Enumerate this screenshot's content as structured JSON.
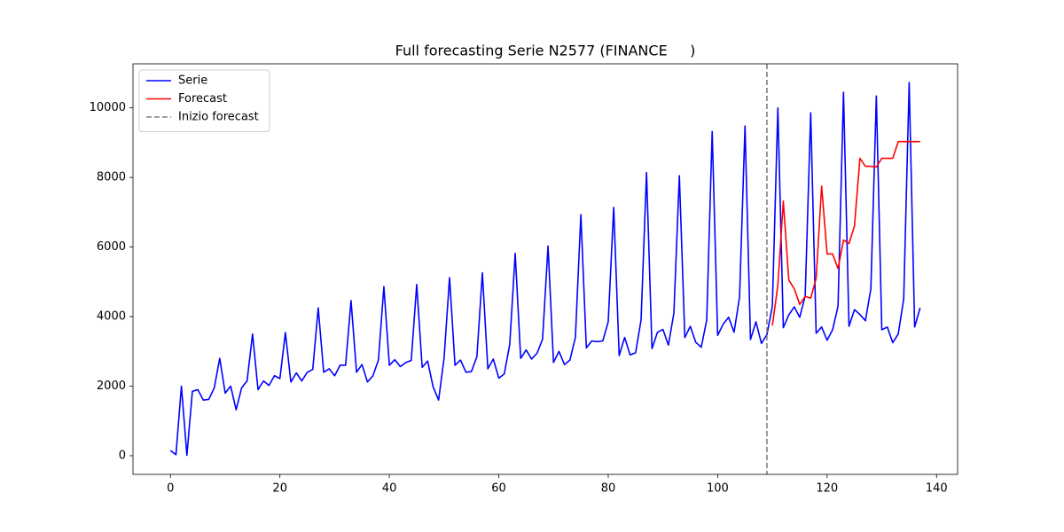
{
  "chart_data": {
    "type": "line",
    "title": "Full forecasting Serie N2577 (FINANCE     )",
    "xlim": [
      -6.85,
      143.85
    ],
    "ylim": [
      -536,
      11266
    ],
    "xticks": [
      0,
      20,
      40,
      60,
      80,
      100,
      120,
      140
    ],
    "yticks": [
      0,
      2000,
      4000,
      6000,
      8000,
      10000
    ],
    "legend": "upper left",
    "series": [
      {
        "name": "Serie",
        "color": "#0000ff",
        "x": [
          0,
          1,
          2,
          3,
          4,
          5,
          6,
          7,
          8,
          9,
          10,
          11,
          12,
          13,
          14,
          15,
          16,
          17,
          18,
          19,
          20,
          21,
          22,
          23,
          24,
          25,
          26,
          27,
          28,
          29,
          30,
          31,
          32,
          33,
          34,
          35,
          36,
          37,
          38,
          39,
          40,
          41,
          42,
          43,
          44,
          45,
          46,
          47,
          48,
          49,
          50,
          51,
          52,
          53,
          54,
          55,
          56,
          57,
          58,
          59,
          60,
          61,
          62,
          63,
          64,
          65,
          66,
          67,
          68,
          69,
          70,
          71,
          72,
          73,
          74,
          75,
          76,
          77,
          78,
          79,
          80,
          81,
          82,
          83,
          84,
          85,
          86,
          87,
          88,
          89,
          90,
          91,
          92,
          93,
          94,
          95,
          96,
          97,
          98,
          99,
          100,
          101,
          102,
          103,
          104,
          105,
          106,
          107,
          108,
          109,
          110,
          111,
          112,
          113,
          114,
          115,
          116,
          117,
          118,
          119,
          120,
          121,
          122,
          123,
          124,
          125,
          126,
          127,
          128,
          129,
          130,
          131,
          132,
          133,
          134,
          135,
          136,
          137
        ],
        "values": [
          150,
          30,
          2000,
          10,
          1850,
          1900,
          1600,
          1620,
          1950,
          2800,
          1800,
          2000,
          1320,
          1950,
          2150,
          3500,
          1900,
          2150,
          2020,
          2300,
          2220,
          3540,
          2120,
          2380,
          2150,
          2400,
          2480,
          4250,
          2400,
          2500,
          2300,
          2600,
          2600,
          4460,
          2400,
          2620,
          2120,
          2300,
          2750,
          4860,
          2600,
          2760,
          2560,
          2680,
          2740,
          4920,
          2540,
          2720,
          1980,
          1600,
          2800,
          5120,
          2600,
          2750,
          2400,
          2420,
          2850,
          5260,
          2500,
          2780,
          2230,
          2350,
          3200,
          5820,
          2800,
          3040,
          2780,
          2950,
          3350,
          6030,
          2680,
          3000,
          2620,
          2750,
          3400,
          6930,
          3100,
          3300,
          3280,
          3300,
          3850,
          7140,
          2880,
          3400,
          2900,
          2960,
          3900,
          8140,
          3080,
          3550,
          3630,
          3180,
          4100,
          8050,
          3400,
          3720,
          3260,
          3120,
          3900,
          9320,
          3460,
          3780,
          3980,
          3550,
          4560,
          9480,
          3340,
          3850,
          3230,
          3480,
          4300,
          10000,
          3680,
          4050,
          4280,
          3980,
          4600,
          9860,
          3520,
          3700,
          3320,
          3620,
          4300,
          10450,
          3720,
          4200,
          4060,
          3880,
          4800,
          10340,
          3620,
          3700,
          3250,
          3500,
          4500,
          10730,
          3700,
          4250
        ]
      },
      {
        "name": "Forecast",
        "color": "#ff0000",
        "x": [
          110,
          111,
          112,
          113,
          114,
          115,
          116,
          117,
          118,
          119,
          120,
          121,
          122,
          123,
          124,
          125,
          126,
          127,
          128,
          129,
          130,
          131,
          132,
          133,
          134,
          135,
          136,
          137
        ],
        "values": [
          3740,
          4900,
          7320,
          5050,
          4800,
          4350,
          4580,
          4530,
          5100,
          7750,
          5800,
          5800,
          5380,
          6200,
          6100,
          6600,
          8550,
          8320,
          8320,
          8300,
          8550,
          8550,
          8550,
          9030,
          9030,
          9030,
          9030,
          9030
        ]
      }
    ],
    "vline": {
      "name": "Inizio forecast",
      "x": 109,
      "color": "#808080",
      "style": "dashed"
    }
  }
}
